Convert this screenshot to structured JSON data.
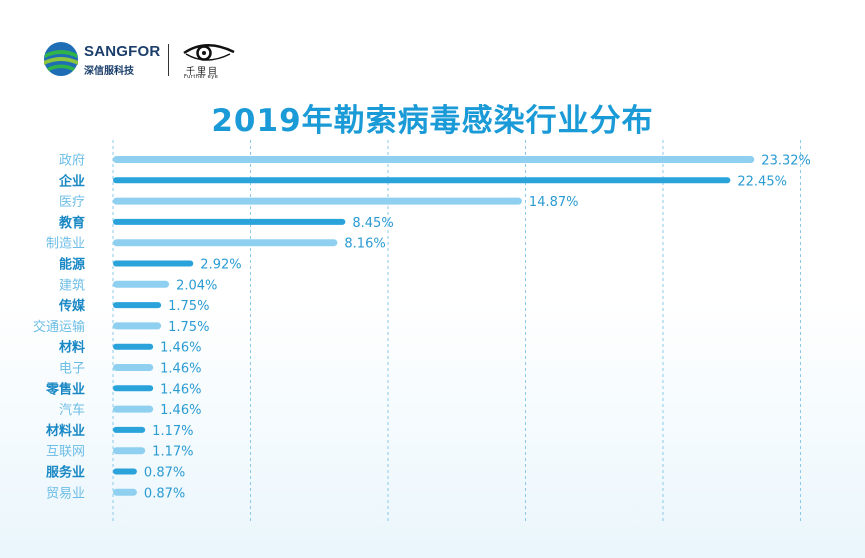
{
  "header": {
    "brand_name": "SANGFOR",
    "brand_sub": "深信服科技",
    "partner_name": "千里目",
    "partner_sub": "Further eye"
  },
  "colors": {
    "dark_bar": "#2aa3db",
    "light_bar": "#8fd0f0",
    "dark_label": "#1a88c4",
    "light_label": "#6cbde6",
    "title": "#1a9ad6",
    "grid": "#8ccbe8"
  },
  "chart_data": {
    "type": "bar",
    "orientation": "horizontal",
    "title": "2019年勒索病毒感染行业分布",
    "xlabel": "",
    "ylabel": "",
    "xlim": [
      0,
      25
    ],
    "grid": "vertical dashed",
    "categories": [
      "政府",
      "企业",
      "医疗",
      "教育",
      "制造业",
      "能源",
      "建筑",
      "传媒",
      "交通运输",
      "材料",
      "电子",
      "零售业",
      "汽车",
      "材料业",
      "互联网",
      "服务业",
      "贸易业"
    ],
    "values": [
      23.32,
      22.45,
      14.87,
      8.45,
      8.16,
      2.92,
      2.04,
      1.75,
      1.75,
      1.46,
      1.46,
      1.46,
      1.46,
      1.17,
      1.17,
      0.87,
      0.87
    ],
    "value_labels": [
      "23.32%",
      "22.45%",
      "14.87%",
      "8.45%",
      "8.16%",
      "2.92%",
      "2.04%",
      "1.75%",
      "1.75%",
      "1.46%",
      "1.46%",
      "1.46%",
      "1.46%",
      "1.17%",
      "1.17%",
      "0.87%",
      "0.87%"
    ]
  }
}
